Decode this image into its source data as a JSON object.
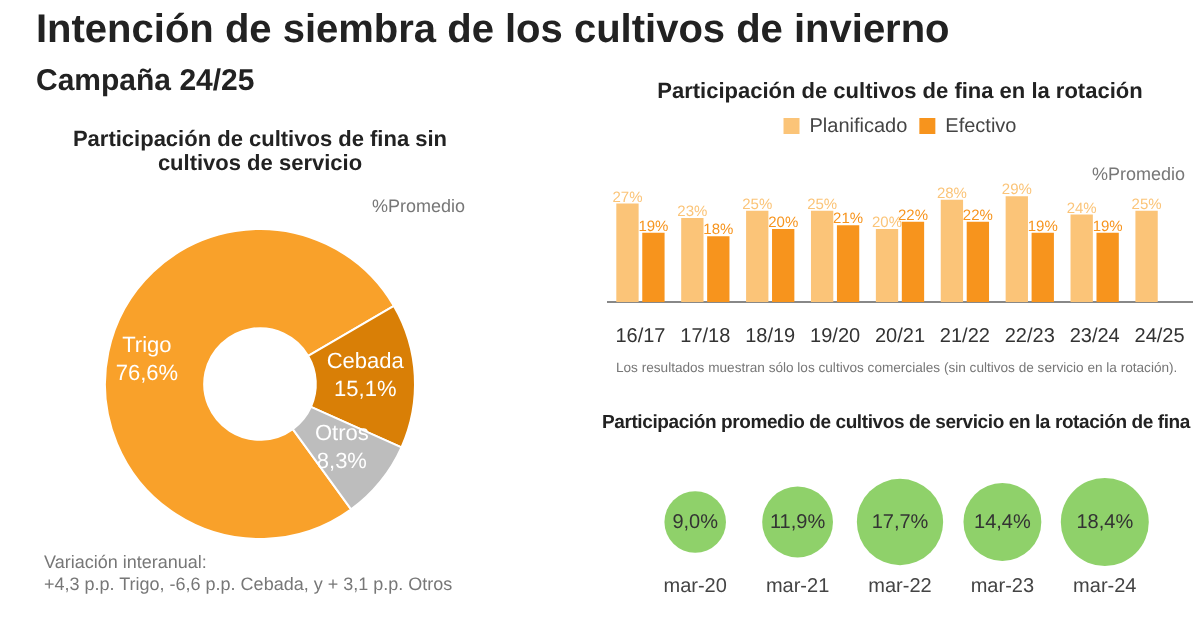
{
  "chart_data": [
    {
      "type": "donut",
      "title": "Intención de siembra de los cultivos de invierno",
      "subtitle": "Campaña 24/25",
      "annotations": [
        "Participación de cultivos de fina sin cultivos de servicio",
        "%Promedio",
        "Variación interanual:\n+4,3 p.p. Trigo, -6,6 p.p. Cebada, y + 3,1 p.p. Otros"
      ],
      "categories": [
        "Trigo",
        "Cebada",
        "Otros"
      ],
      "values": [
        76.6,
        15.1,
        8.3
      ],
      "value_labels": [
        "76,6%",
        "15,1%",
        "8,3%"
      ],
      "colors": [
        "#f9a12a",
        "#d97f06",
        "#bdbdbd"
      ]
    },
    {
      "type": "bar",
      "title": "Participación de cultivos de fina en la rotación",
      "legend": "top",
      "tick_labels": "x",
      "annotations": [
        "%Promedio",
        "Los resultados muestran sólo los cultivos comerciales (sin cultivos de servicio en la rotación)."
      ],
      "categories": [
        "16/17",
        "17/18",
        "18/19",
        "19/20",
        "20/21",
        "21/22",
        "22/23",
        "23/24",
        "24/25"
      ],
      "series": [
        {
          "name": "Planificado",
          "color": "#fbc478",
          "values": [
            27,
            23,
            25,
            25,
            20,
            28,
            29,
            24,
            25
          ],
          "value_labels": [
            "27%",
            "23%",
            "25%",
            "25%",
            "20%",
            "28%",
            "29%",
            "24%",
            "25%"
          ]
        },
        {
          "name": "Efectivo",
          "color": "#f7941d",
          "values": [
            19,
            18,
            20,
            21,
            22,
            22,
            19,
            19,
            null
          ],
          "value_labels": [
            "19%",
            "18%",
            "20%",
            "21%",
            "22%",
            "22%",
            "19%",
            "19%",
            null
          ]
        }
      ]
    },
    {
      "type": "other",
      "title": "Participación promedio de cultivos de servicio en la rotación de fina",
      "categories": [
        "mar-20",
        "mar-21",
        "mar-22",
        "mar-23",
        "mar-24"
      ],
      "values": [
        9.0,
        11.9,
        17.7,
        14.4,
        18.4
      ],
      "value_labels": [
        "9,0%",
        "11,9%",
        "17,7%",
        "14,4%",
        "18,4%"
      ],
      "color": "#8fd16a"
    }
  ]
}
